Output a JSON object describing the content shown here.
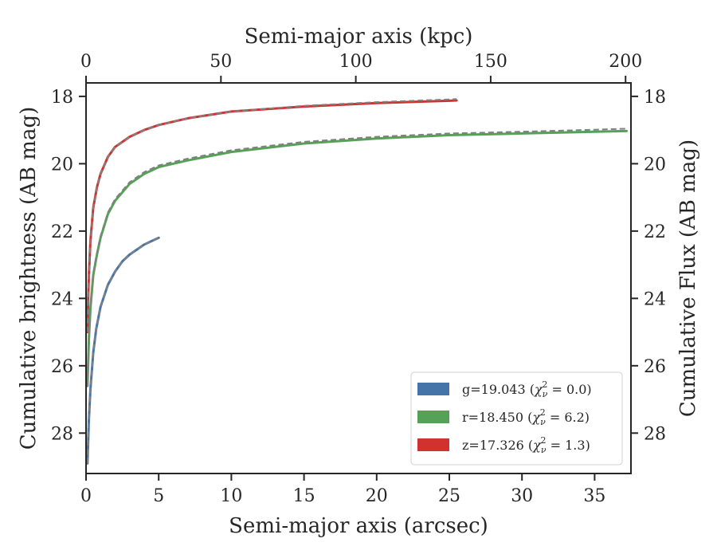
{
  "chart_data": {
    "type": "line",
    "xlabel": "Semi-major axis (arcsec)",
    "xlabel_top": "Semi-major axis (kpc)",
    "ylabel": "Cumulative brightness (AB mag)",
    "ylabel_right": "Cumulative Flux (AB mag)",
    "xlim": [
      0,
      37.5
    ],
    "xlim_top": [
      0,
      202
    ],
    "ylim": [
      29.2,
      17.6
    ],
    "y_inverted": true,
    "x_ticks": [
      0,
      5,
      10,
      15,
      20,
      25,
      30,
      35
    ],
    "x_ticks_top": [
      0,
      50,
      100,
      150,
      200
    ],
    "y_ticks": [
      18,
      20,
      22,
      24,
      26,
      28
    ],
    "grid": false,
    "legend_position": "lower-right",
    "series": [
      {
        "name": "g=19.043 (χ²ν = 0.0)",
        "legend_prefix": "g=19.043 (",
        "legend_sub": "ν",
        "legend_sup": "2",
        "legend_suffix": " = 0.0)",
        "color": "#4575a8",
        "x": [
          0.1,
          0.2,
          0.3,
          0.5,
          0.7,
          1.0,
          1.5,
          2.0,
          2.5,
          3.0,
          3.5,
          4.0,
          4.5,
          5.0
        ],
        "y": [
          28.9,
          27.6,
          26.7,
          25.6,
          24.9,
          24.25,
          23.6,
          23.2,
          22.9,
          22.7,
          22.55,
          22.4,
          22.3,
          22.2
        ]
      },
      {
        "name": "r=18.450 (χ²ν = 6.2)",
        "legend_prefix": "r=18.450 (",
        "legend_sub": "ν",
        "legend_sup": "2",
        "legend_suffix": " = 6.2)",
        "color": "#55a256",
        "x": [
          0.1,
          0.2,
          0.3,
          0.5,
          0.75,
          1.0,
          1.5,
          2.0,
          3.0,
          4.0,
          5.0,
          7.0,
          10,
          15,
          20,
          25,
          30,
          35,
          37.2
        ],
        "y": [
          26.6,
          25.2,
          24.3,
          23.3,
          22.7,
          22.2,
          21.5,
          21.1,
          20.6,
          20.3,
          20.1,
          19.9,
          19.65,
          19.4,
          19.25,
          19.15,
          19.1,
          19.05,
          19.03
        ]
      },
      {
        "name": "z=17.326 (χ²ν = 1.3)",
        "legend_prefix": "z=17.326 (",
        "legend_sub": "ν",
        "legend_sup": "2",
        "legend_suffix": " = 1.3)",
        "color": "#d1312f",
        "x": [
          0.1,
          0.15,
          0.2,
          0.3,
          0.5,
          0.75,
          1.0,
          1.5,
          2.0,
          3.0,
          4.0,
          5.0,
          7.0,
          10,
          15,
          20,
          25,
          25.5
        ],
        "y": [
          25.0,
          24.0,
          23.3,
          22.3,
          21.3,
          20.7,
          20.3,
          19.8,
          19.5,
          19.2,
          19.0,
          18.85,
          18.65,
          18.45,
          18.3,
          18.2,
          18.13,
          18.12
        ]
      }
    ],
    "model_lines": [
      {
        "style": "dashed",
        "color": "#808080",
        "x": [
          0.1,
          0.2,
          0.3,
          0.5,
          0.7,
          1.0,
          1.5,
          2.0,
          2.5,
          3.0,
          3.5,
          4.0,
          4.5,
          5.0
        ],
        "y": [
          28.9,
          27.6,
          26.7,
          25.6,
          24.9,
          24.25,
          23.6,
          23.2,
          22.9,
          22.7,
          22.55,
          22.4,
          22.3,
          22.2
        ]
      },
      {
        "style": "dashed",
        "color": "#808080",
        "x": [
          0.1,
          0.2,
          0.3,
          0.5,
          0.75,
          1.0,
          1.5,
          2.0,
          3.0,
          4.0,
          5.0,
          7.0,
          10,
          15,
          20,
          25,
          30,
          35,
          37.2
        ],
        "y": [
          26.6,
          25.2,
          24.3,
          23.25,
          22.65,
          22.15,
          21.45,
          21.05,
          20.55,
          20.25,
          20.05,
          19.85,
          19.6,
          19.35,
          19.2,
          19.1,
          19.05,
          18.99,
          18.96
        ]
      },
      {
        "style": "dashed",
        "color": "#808080",
        "x": [
          0.1,
          0.15,
          0.2,
          0.3,
          0.5,
          0.75,
          1.0,
          1.5,
          2.0,
          3.0,
          4.0,
          5.0,
          7.0,
          10,
          15,
          20,
          25,
          25.5
        ],
        "y": [
          25.0,
          24.0,
          23.3,
          22.3,
          21.3,
          20.7,
          20.3,
          19.8,
          19.5,
          19.2,
          19.0,
          18.85,
          18.65,
          18.45,
          18.28,
          18.17,
          18.09,
          18.08
        ]
      }
    ]
  }
}
